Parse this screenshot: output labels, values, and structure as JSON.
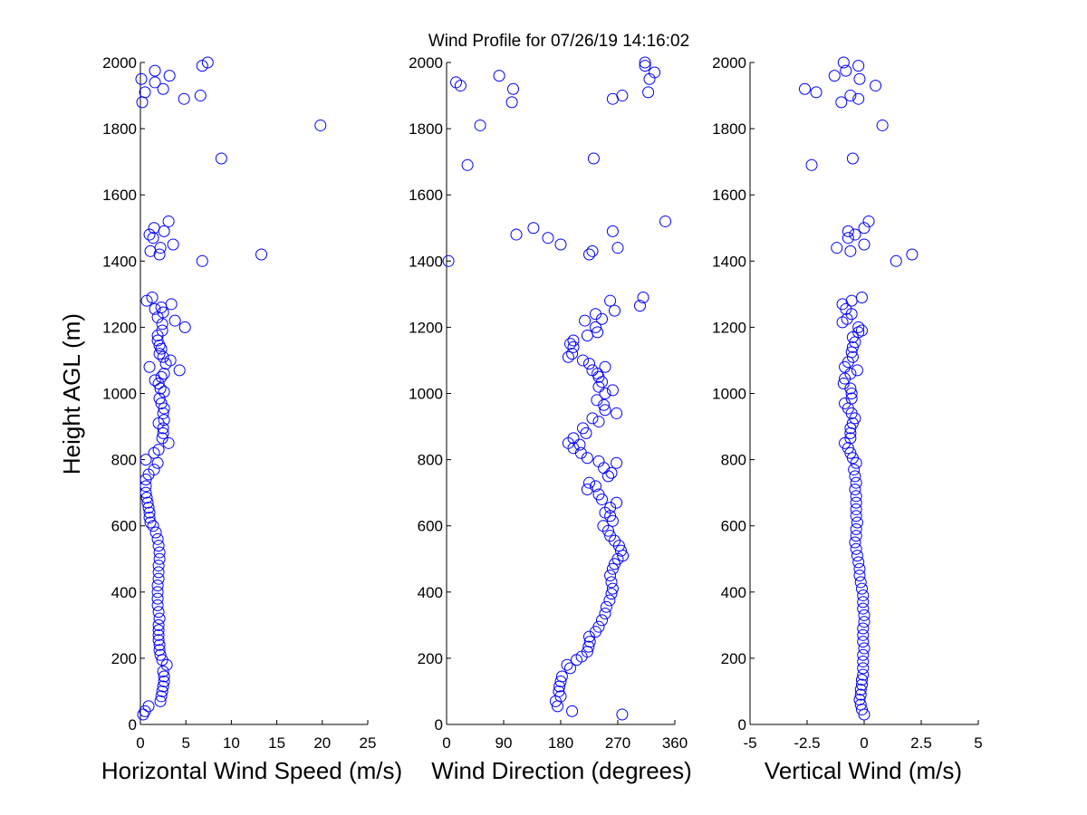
{
  "title": "Wind Profile for  07/26/19 14:16:02",
  "ylabel": "Height AGL (m)",
  "marker_color": "#0000ff",
  "chart_data": [
    {
      "type": "scatter",
      "title": "Wind Profile for  07/26/19 14:16:02",
      "xlabel": "Horizontal Wind Speed (m/s)",
      "ylabel": "Height AGL (m)",
      "xlim": [
        0,
        25
      ],
      "ylim": [
        0,
        2000
      ],
      "xticks": [
        0,
        5,
        10,
        15,
        20,
        25
      ],
      "xtick_labels": [
        "0",
        "5",
        "10",
        "15",
        "20",
        "25"
      ],
      "yticks": [
        0,
        200,
        400,
        600,
        800,
        1000,
        1200,
        1400,
        1600,
        1800,
        2000
      ],
      "ytick_labels": [
        "0",
        "200",
        "400",
        "600",
        "800",
        "1000",
        "1200",
        "1400",
        "1600",
        "1800",
        "2000"
      ],
      "grid": false,
      "points": [
        [
          0.3,
          30
        ],
        [
          0.5,
          40
        ],
        [
          0.9,
          55
        ],
        [
          2.2,
          70
        ],
        [
          2.3,
          85
        ],
        [
          2.4,
          100
        ],
        [
          2.5,
          115
        ],
        [
          2.6,
          130
        ],
        [
          2.6,
          145
        ],
        [
          2.5,
          160
        ],
        [
          2.9,
          180
        ],
        [
          2.4,
          195
        ],
        [
          2.2,
          210
        ],
        [
          2.1,
          225
        ],
        [
          2.1,
          240
        ],
        [
          2.0,
          255
        ],
        [
          2.0,
          270
        ],
        [
          2.0,
          285
        ],
        [
          2.0,
          300
        ],
        [
          2.1,
          320
        ],
        [
          2.0,
          340
        ],
        [
          1.9,
          360
        ],
        [
          1.9,
          380
        ],
        [
          1.9,
          400
        ],
        [
          1.9,
          420
        ],
        [
          2.0,
          440
        ],
        [
          2.0,
          460
        ],
        [
          2.0,
          480
        ],
        [
          2.1,
          500
        ],
        [
          2.1,
          520
        ],
        [
          2.0,
          540
        ],
        [
          1.9,
          560
        ],
        [
          1.7,
          580
        ],
        [
          1.4,
          600
        ],
        [
          1.1,
          610
        ],
        [
          1.0,
          625
        ],
        [
          1.0,
          640
        ],
        [
          0.9,
          655
        ],
        [
          0.8,
          670
        ],
        [
          0.7,
          685
        ],
        [
          0.6,
          700
        ],
        [
          0.6,
          720
        ],
        [
          0.6,
          740
        ],
        [
          0.9,
          755
        ],
        [
          1.5,
          770
        ],
        [
          1.9,
          790
        ],
        [
          0.6,
          800
        ],
        [
          1.5,
          820
        ],
        [
          2.0,
          830
        ],
        [
          3.1,
          850
        ],
        [
          2.4,
          865
        ],
        [
          2.5,
          880
        ],
        [
          2.5,
          895
        ],
        [
          2.0,
          910
        ],
        [
          2.6,
          920
        ],
        [
          2.5,
          940
        ],
        [
          2.6,
          955
        ],
        [
          2.3,
          970
        ],
        [
          2.1,
          985
        ],
        [
          2.6,
          1005
        ],
        [
          2.2,
          1015
        ],
        [
          2.0,
          1030
        ],
        [
          1.6,
          1040
        ],
        [
          2.3,
          1050
        ],
        [
          2.6,
          1060
        ],
        [
          4.3,
          1070
        ],
        [
          1.0,
          1080
        ],
        [
          2.8,
          1090
        ],
        [
          3.3,
          1100
        ],
        [
          2.5,
          1110
        ],
        [
          2.1,
          1120
        ],
        [
          2.3,
          1135
        ],
        [
          2.1,
          1145
        ],
        [
          1.9,
          1160
        ],
        [
          1.9,
          1175
        ],
        [
          2.4,
          1190
        ],
        [
          4.9,
          1200
        ],
        [
          2.4,
          1210
        ],
        [
          3.8,
          1220
        ],
        [
          1.9,
          1230
        ],
        [
          2.5,
          1245
        ],
        [
          1.6,
          1255
        ],
        [
          2.3,
          1260
        ],
        [
          3.4,
          1270
        ],
        [
          0.7,
          1280
        ],
        [
          1.3,
          1290
        ],
        [
          6.8,
          1400
        ],
        [
          2.1,
          1420
        ],
        [
          13.3,
          1420
        ],
        [
          1.1,
          1430
        ],
        [
          2.2,
          1440
        ],
        [
          3.6,
          1450
        ],
        [
          1.4,
          1470
        ],
        [
          1.0,
          1480
        ],
        [
          2.6,
          1490
        ],
        [
          1.5,
          1500
        ],
        [
          3.1,
          1520
        ],
        [
          8.9,
          1710
        ],
        [
          19.8,
          1810
        ],
        [
          0.2,
          1880
        ],
        [
          4.8,
          1890
        ],
        [
          6.6,
          1900
        ],
        [
          0.5,
          1910
        ],
        [
          2.5,
          1920
        ],
        [
          1.6,
          1940
        ],
        [
          0.1,
          1950
        ],
        [
          3.2,
          1960
        ],
        [
          1.6,
          1975
        ],
        [
          6.8,
          1990
        ],
        [
          7.4,
          2000
        ]
      ]
    },
    {
      "type": "scatter",
      "xlabel": "Wind Direction (degrees)",
      "xlim": [
        0,
        360
      ],
      "ylim": [
        0,
        2000
      ],
      "xticks": [
        0,
        90,
        180,
        270,
        360
      ],
      "xtick_labels": [
        "0",
        "90",
        "180",
        "270",
        "360"
      ],
      "yticks": [
        0,
        200,
        400,
        600,
        800,
        1000,
        1200,
        1400,
        1600,
        1800,
        2000
      ],
      "ytick_labels": [
        "0",
        "200",
        "400",
        "600",
        "800",
        "1000",
        "1200",
        "1400",
        "1600",
        "1800",
        "2000"
      ],
      "grid": false,
      "points": [
        [
          277,
          30
        ],
        [
          198,
          40
        ],
        [
          175,
          55
        ],
        [
          172,
          70
        ],
        [
          180,
          85
        ],
        [
          177,
          100
        ],
        [
          178,
          115
        ],
        [
          180,
          130
        ],
        [
          182,
          145
        ],
        [
          195,
          170
        ],
        [
          190,
          180
        ],
        [
          205,
          195
        ],
        [
          213,
          205
        ],
        [
          222,
          220
        ],
        [
          224,
          235
        ],
        [
          226,
          250
        ],
        [
          225,
          265
        ],
        [
          235,
          280
        ],
        [
          240,
          295
        ],
        [
          245,
          315
        ],
        [
          250,
          335
        ],
        [
          252,
          355
        ],
        [
          257,
          375
        ],
        [
          260,
          395
        ],
        [
          262,
          410
        ],
        [
          260,
          430
        ],
        [
          258,
          450
        ],
        [
          262,
          470
        ],
        [
          265,
          485
        ],
        [
          270,
          500
        ],
        [
          278,
          510
        ],
        [
          275,
          525
        ],
        [
          272,
          540
        ],
        [
          265,
          555
        ],
        [
          258,
          570
        ],
        [
          255,
          585
        ],
        [
          247,
          600
        ],
        [
          262,
          615
        ],
        [
          258,
          630
        ],
        [
          250,
          640
        ],
        [
          258,
          655
        ],
        [
          268,
          670
        ],
        [
          245,
          680
        ],
        [
          240,
          695
        ],
        [
          222,
          710
        ],
        [
          235,
          720
        ],
        [
          225,
          730
        ],
        [
          255,
          750
        ],
        [
          260,
          760
        ],
        [
          248,
          775
        ],
        [
          240,
          795
        ],
        [
          268,
          790
        ],
        [
          222,
          805
        ],
        [
          212,
          820
        ],
        [
          200,
          835
        ],
        [
          210,
          845
        ],
        [
          192,
          850
        ],
        [
          200,
          865
        ],
        [
          220,
          880
        ],
        [
          215,
          895
        ],
        [
          240,
          915
        ],
        [
          230,
          925
        ],
        [
          250,
          950
        ],
        [
          248,
          965
        ],
        [
          268,
          940
        ],
        [
          237,
          980
        ],
        [
          250,
          1000
        ],
        [
          262,
          1010
        ],
        [
          240,
          1020
        ],
        [
          245,
          1035
        ],
        [
          240,
          1050
        ],
        [
          238,
          1060
        ],
        [
          230,
          1070
        ],
        [
          250,
          1080
        ],
        [
          225,
          1090
        ],
        [
          215,
          1100
        ],
        [
          192,
          1110
        ],
        [
          198,
          1120
        ],
        [
          200,
          1140
        ],
        [
          195,
          1150
        ],
        [
          200,
          1160
        ],
        [
          222,
          1175
        ],
        [
          238,
          1185
        ],
        [
          235,
          1200
        ],
        [
          218,
          1220
        ],
        [
          245,
          1225
        ],
        [
          235,
          1240
        ],
        [
          265,
          1250
        ],
        [
          258,
          1280
        ],
        [
          305,
          1265
        ],
        [
          310,
          1290
        ],
        [
          3,
          1400
        ],
        [
          225,
          1420
        ],
        [
          180,
          1450
        ],
        [
          110,
          1480
        ],
        [
          160,
          1470
        ],
        [
          270,
          1440
        ],
        [
          262,
          1490
        ],
        [
          137,
          1500
        ],
        [
          345,
          1520
        ],
        [
          230,
          1430
        ],
        [
          33,
          1690
        ],
        [
          232,
          1710
        ],
        [
          53,
          1810
        ],
        [
          103,
          1880
        ],
        [
          262,
          1890
        ],
        [
          277,
          1900
        ],
        [
          318,
          1910
        ],
        [
          105,
          1920
        ],
        [
          22,
          1930
        ],
        [
          15,
          1940
        ],
        [
          320,
          1950
        ],
        [
          83,
          1960
        ],
        [
          328,
          1970
        ],
        [
          313,
          1990
        ],
        [
          313,
          2000
        ]
      ]
    },
    {
      "type": "scatter",
      "xlabel": "Vertical Wind (m/s)",
      "xlim": [
        -5,
        5
      ],
      "ylim": [
        0,
        2000
      ],
      "xticks": [
        -5,
        -2.5,
        0,
        2.5,
        5
      ],
      "xtick_labels": [
        "-5",
        "-2.5",
        "0",
        "2.5",
        "5"
      ],
      "yticks": [
        0,
        200,
        400,
        600,
        800,
        1000,
        1200,
        1400,
        1600,
        1800,
        2000
      ],
      "ytick_labels": [
        "0",
        "200",
        "400",
        "600",
        "800",
        "1000",
        "1200",
        "1400",
        "1600",
        "1800",
        "2000"
      ],
      "grid": false,
      "points": [
        [
          0.0,
          30
        ],
        [
          -0.1,
          45
        ],
        [
          -0.15,
          60
        ],
        [
          -0.2,
          75
        ],
        [
          -0.15,
          90
        ],
        [
          -0.15,
          105
        ],
        [
          -0.1,
          120
        ],
        [
          -0.1,
          135
        ],
        [
          -0.05,
          150
        ],
        [
          -0.05,
          170
        ],
        [
          -0.05,
          190
        ],
        [
          -0.05,
          210
        ],
        [
          0.0,
          230
        ],
        [
          -0.05,
          250
        ],
        [
          -0.05,
          270
        ],
        [
          -0.05,
          290
        ],
        [
          0.0,
          310
        ],
        [
          0.0,
          330
        ],
        [
          -0.05,
          350
        ],
        [
          -0.05,
          370
        ],
        [
          -0.05,
          390
        ],
        [
          -0.1,
          410
        ],
        [
          -0.15,
          430
        ],
        [
          -0.2,
          450
        ],
        [
          -0.2,
          470
        ],
        [
          -0.25,
          490
        ],
        [
          -0.3,
          510
        ],
        [
          -0.35,
          530
        ],
        [
          -0.4,
          550
        ],
        [
          -0.35,
          570
        ],
        [
          -0.35,
          590
        ],
        [
          -0.3,
          610
        ],
        [
          -0.35,
          630
        ],
        [
          -0.35,
          650
        ],
        [
          -0.35,
          670
        ],
        [
          -0.35,
          690
        ],
        [
          -0.4,
          710
        ],
        [
          -0.35,
          730
        ],
        [
          -0.4,
          750
        ],
        [
          -0.45,
          770
        ],
        [
          -0.35,
          790
        ],
        [
          -0.5,
          805
        ],
        [
          -0.6,
          820
        ],
        [
          -0.7,
          835
        ],
        [
          -0.85,
          850
        ],
        [
          -0.6,
          865
        ],
        [
          -0.6,
          880
        ],
        [
          -0.6,
          895
        ],
        [
          -0.5,
          910
        ],
        [
          -0.4,
          925
        ],
        [
          -0.55,
          940
        ],
        [
          -0.7,
          955
        ],
        [
          -0.85,
          970
        ],
        [
          -0.55,
          985
        ],
        [
          -0.55,
          1000
        ],
        [
          -0.6,
          1015
        ],
        [
          -0.9,
          1030
        ],
        [
          -0.85,
          1045
        ],
        [
          -0.6,
          1060
        ],
        [
          -0.3,
          1070
        ],
        [
          -0.85,
          1080
        ],
        [
          -0.7,
          1095
        ],
        [
          -0.5,
          1110
        ],
        [
          -0.55,
          1125
        ],
        [
          -0.5,
          1140
        ],
        [
          -0.4,
          1155
        ],
        [
          -0.5,
          1170
        ],
        [
          -0.25,
          1185
        ],
        [
          -0.1,
          1190
        ],
        [
          -0.25,
          1200
        ],
        [
          -0.95,
          1215
        ],
        [
          -0.75,
          1225
        ],
        [
          -0.55,
          1240
        ],
        [
          -0.8,
          1255
        ],
        [
          -0.95,
          1270
        ],
        [
          -0.55,
          1280
        ],
        [
          -0.1,
          1290
        ],
        [
          1.4,
          1400
        ],
        [
          2.1,
          1420
        ],
        [
          -0.6,
          1430
        ],
        [
          -1.2,
          1440
        ],
        [
          0.0,
          1450
        ],
        [
          -0.7,
          1470
        ],
        [
          -0.4,
          1480
        ],
        [
          -0.7,
          1490
        ],
        [
          0.0,
          1500
        ],
        [
          0.2,
          1520
        ],
        [
          -2.3,
          1690
        ],
        [
          -0.5,
          1710
        ],
        [
          0.8,
          1810
        ],
        [
          -1.0,
          1880
        ],
        [
          -0.25,
          1890
        ],
        [
          -0.6,
          1900
        ],
        [
          -2.1,
          1910
        ],
        [
          -2.6,
          1920
        ],
        [
          0.5,
          1930
        ],
        [
          -0.2,
          1950
        ],
        [
          -1.3,
          1960
        ],
        [
          -0.8,
          1975
        ],
        [
          -0.25,
          1990
        ],
        [
          -0.9,
          2000
        ]
      ]
    }
  ]
}
